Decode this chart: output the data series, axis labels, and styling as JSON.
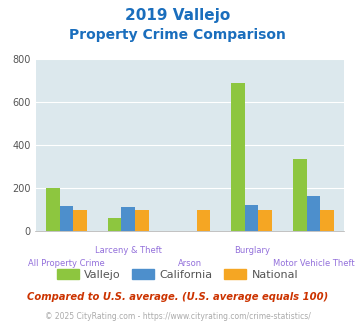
{
  "title_line1": "2019 Vallejo",
  "title_line2": "Property Crime Comparison",
  "categories": [
    "All Property Crime",
    "Larceny & Theft",
    "Arson",
    "Burglary",
    "Motor Vehicle Theft"
  ],
  "series": {
    "Vallejo": [
      200,
      60,
      0,
      690,
      335
    ],
    "California": [
      115,
      110,
      0,
      120,
      165
    ],
    "National": [
      100,
      100,
      100,
      100,
      100
    ]
  },
  "colors": {
    "Vallejo": "#8dc63f",
    "California": "#4d8fcc",
    "National": "#f5a623"
  },
  "ylim": [
    0,
    800
  ],
  "yticks": [
    0,
    200,
    400,
    600,
    800
  ],
  "plot_bg_color": "#dce8ed",
  "title_color": "#1a6ebd",
  "xlabel_color": "#9370db",
  "legend_labels": [
    "Vallejo",
    "California",
    "National"
  ],
  "legend_text_color": "#555555",
  "footnote1": "Compared to U.S. average. (U.S. average equals 100)",
  "footnote2": "© 2025 CityRating.com - https://www.cityrating.com/crime-statistics/",
  "footnote1_color": "#cc3300",
  "footnote2_color": "#aaaaaa",
  "footnote2_link_color": "#4d8fcc"
}
